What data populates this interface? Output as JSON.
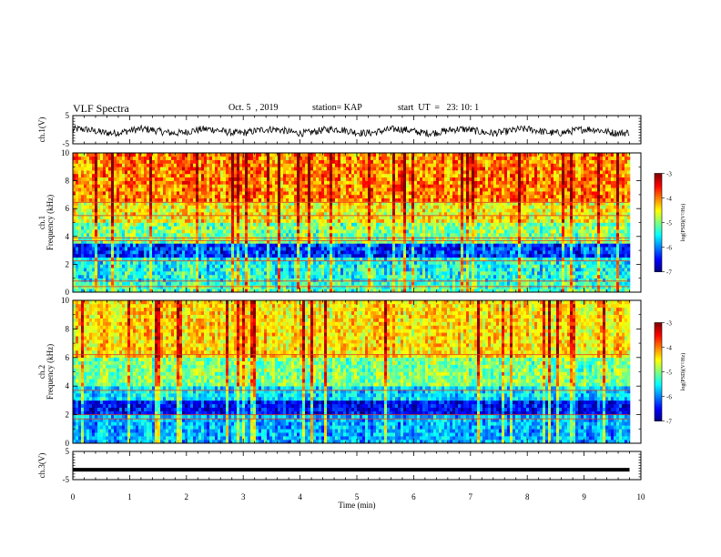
{
  "header": {
    "title": "VLF Spectra",
    "date": "Oct. 5  , 2019",
    "station": "station= KAP",
    "start": "start  UT  =   23: 10: 1"
  },
  "chart_data": [
    {
      "type": "line",
      "name": "ch1-waveform",
      "ylabel": "ch.1(V)",
      "ylim": [
        -5,
        5
      ],
      "yticks": [
        "5",
        "-5"
      ],
      "x_range_min": [
        0,
        9.8
      ],
      "description_of_values": "noisy waveform oscillating roughly between -2.5 and 1.5 V"
    },
    {
      "type": "heatmap",
      "name": "ch1-spectrogram",
      "ylabel": "ch.1\nFrequency  (kHz)",
      "ylim": [
        0,
        10
      ],
      "yticks": [
        "0",
        "2",
        "4",
        "6",
        "8",
        "10"
      ],
      "x_range_min": [
        0,
        9.8
      ],
      "colorbar": {
        "label": "log(PSD)(V²/Hz)",
        "range": [
          -7,
          -3
        ],
        "ticks": [
          "-3",
          "-4",
          "-5",
          "-6",
          "-7"
        ]
      },
      "bands": [
        {
          "f": [
            0,
            0.8
          ],
          "level": -5.2
        },
        {
          "f": [
            0.8,
            2.6
          ],
          "level": -5.4
        },
        {
          "f": [
            2.6,
            3.4
          ],
          "level": -6.3
        },
        {
          "f": [
            3.4,
            5.0
          ],
          "level": -5.0
        },
        {
          "f": [
            5.0,
            6.5
          ],
          "level": -4.5
        },
        {
          "f": [
            6.5,
            10
          ],
          "level": -4.0
        }
      ],
      "lines_kHz": [
        0.4,
        0.8,
        2.25,
        3.7,
        3.9,
        5.5,
        6.45
      ]
    },
    {
      "type": "heatmap",
      "name": "ch2-spectrogram",
      "ylabel": "ch.2\nFrequency  (kHz)",
      "ylim": [
        0,
        10
      ],
      "yticks": [
        "0",
        "2",
        "4",
        "6",
        "8",
        "10"
      ],
      "x_range_min": [
        0,
        9.8
      ],
      "colorbar": {
        "label": "log(PSD)(V²/Hz)",
        "range": [
          -7,
          -3
        ],
        "ticks": [
          "-3",
          "-4",
          "-5",
          "-6",
          "-7"
        ]
      },
      "bands": [
        {
          "f": [
            0,
            2.0
          ],
          "level": -5.8
        },
        {
          "f": [
            2.0,
            3.0
          ],
          "level": -6.5
        },
        {
          "f": [
            3.0,
            4.0
          ],
          "level": -5.6
        },
        {
          "f": [
            4.0,
            6.0
          ],
          "level": -5.0
        },
        {
          "f": [
            6.0,
            10
          ],
          "level": -4.4
        }
      ],
      "lines_kHz": [
        1.7,
        2.0,
        3.7,
        6.2
      ]
    },
    {
      "type": "line",
      "name": "ch3-waveform",
      "ylabel": "ch.3(V)",
      "ylim": [
        -5,
        5
      ],
      "yticks": [
        "5",
        "-5"
      ],
      "x_range_min": [
        0,
        9.8
      ],
      "constant_value": -1.5
    }
  ],
  "xaxis": {
    "label": "Time  (min)",
    "lim": [
      0,
      10
    ],
    "ticks": [
      "0",
      "1",
      "2",
      "3",
      "4",
      "5",
      "6",
      "7",
      "8",
      "9",
      "10"
    ]
  }
}
